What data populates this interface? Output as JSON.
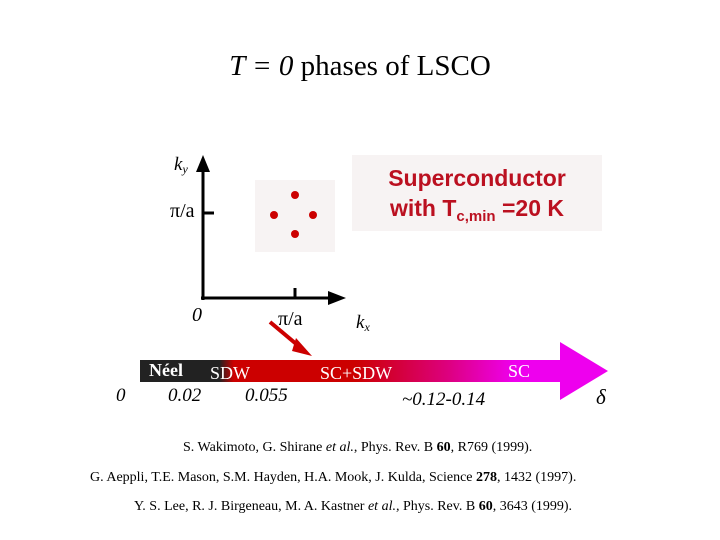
{
  "title": {
    "italic": "T = 0",
    "rest": "phases of LSCO"
  },
  "inset": {
    "ky_base": "k",
    "ky_sub": "y",
    "kx_base": "k",
    "kx_sub": "x",
    "y_tick": "π/a",
    "x_tick": "π/a",
    "origin": "0"
  },
  "superconductor": {
    "line1": "Superconductor",
    "line2_prefix": "with T",
    "line2_sub": "c,min",
    "line2_suffix": " =20 K"
  },
  "phase_bar": {
    "labels": {
      "neel": "Néel",
      "sdw": "SDW",
      "sc_sdw": "SC+SDW",
      "sc": "SC"
    },
    "doping_ticks": [
      "0",
      "0.02",
      "0.055",
      "~0.12-0.14"
    ],
    "axis_symbol": "δ",
    "colors": {
      "neel": "#222222",
      "sdw": "#cc0000",
      "sc": "#ee00ee"
    }
  },
  "references": [
    {
      "pre": "S. Wakimoto, G. Shirane ",
      "em": "et al.",
      "mid": ", Phys. Rev. B ",
      "vol": "60",
      "post": ", R769 (1999)."
    },
    {
      "pre": "G. Aeppli, T.E. Mason, S.M. Hayden, H.A. Mook, J. Kulda, Science ",
      "em": "",
      "mid": "",
      "vol": "278",
      "post": ", 1432 (1997)."
    },
    {
      "pre": "Y. S. Lee, R. J. Birgeneau, M. A. Kastner ",
      "em": "et al.,",
      "mid": " Phys. Rev. B ",
      "vol": "60",
      "post": ", 3643 (1999)."
    }
  ]
}
